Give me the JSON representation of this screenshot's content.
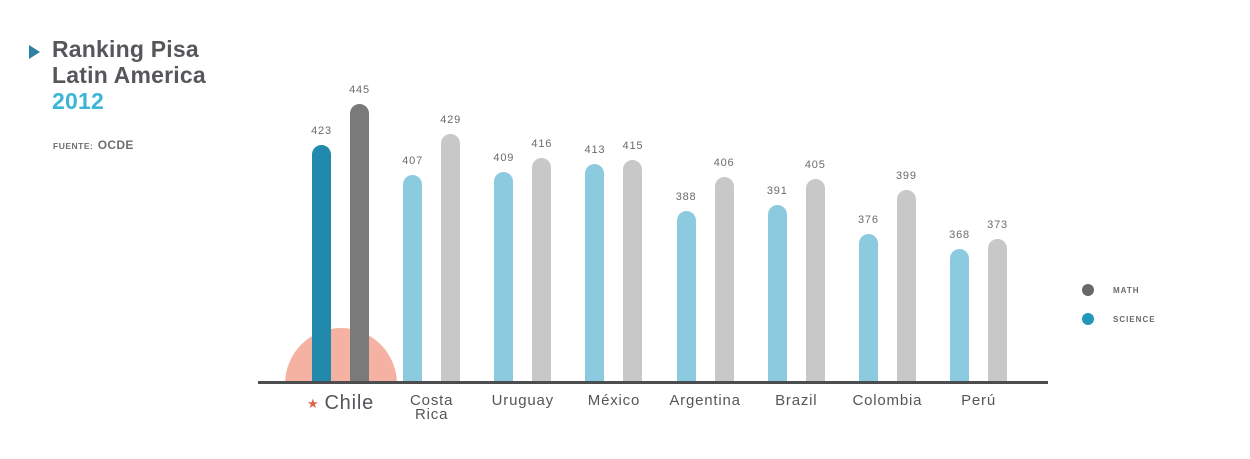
{
  "header": {
    "title_line1": "Ranking Pisa",
    "title_line2": "Latin America",
    "year": "2012",
    "source_label": "FUENTE:",
    "source_value": "OCDE"
  },
  "legend": {
    "position": "right",
    "items": [
      {
        "id": "math",
        "label": "MATH",
        "color": "#686868"
      },
      {
        "id": "science",
        "label": "SCIENCE",
        "color": "#2397bb"
      }
    ]
  },
  "chart_data": {
    "type": "bar",
    "title": "Ranking Pisa Latin America 2012",
    "source": "FUENTE: OCDE",
    "categories": [
      "Chile",
      "Costa Rica",
      "Uruguay",
      "México",
      "Argentina",
      "Brazil",
      "Colombia",
      "Perú"
    ],
    "series": [
      {
        "name": "SCIENCE",
        "values": [
          423,
          407,
          409,
          413,
          388,
          391,
          376,
          368
        ]
      },
      {
        "name": "MATH",
        "values": [
          445,
          429,
          416,
          415,
          406,
          405,
          399,
          373
        ]
      }
    ],
    "value_labels": true,
    "grid": false,
    "legend_position": "right",
    "highlight_category": "Chile",
    "highlight_marker": "star",
    "colors": {
      "science": "#8ccadf",
      "math": "#c8c8c8",
      "science_highlight": "#2189ac",
      "math_highlight": "#7a7a7a",
      "highlight_halo": "#f5b2a3",
      "star": "#e0604c",
      "axis_line": "#4c4d4f",
      "title": "#56575b",
      "year": "#3bb6d4"
    }
  }
}
